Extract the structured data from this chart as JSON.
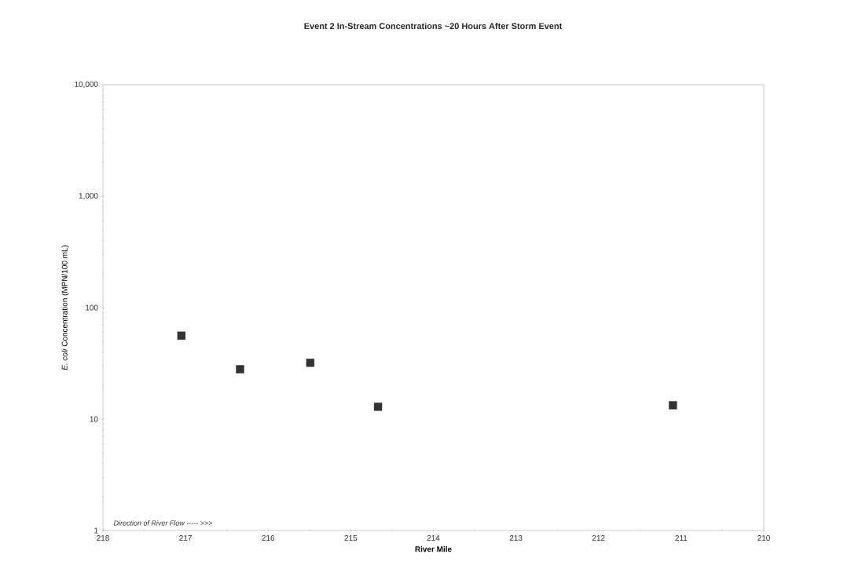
{
  "chart_data": {
    "type": "scatter",
    "title": "Event 2 In-Stream Concentrations ~20 Hours After Storm Event",
    "xlabel": "River Mile",
    "ylabel": "*E. coli* Concentration (MPN/100 mL)",
    "x": [
      217.05,
      216.34,
      215.49,
      214.67,
      211.1
    ],
    "values": [
      56,
      28,
      32,
      12.9,
      13.3
    ],
    "color": "#333333",
    "marker": "square",
    "log": "y",
    "grid": false,
    "xlim": [
      218,
      210
    ],
    "xticks": [
      218,
      217,
      216,
      215,
      214,
      213,
      212,
      211,
      210
    ],
    "ylim": [
      1,
      10000
    ],
    "yticks": [
      1,
      10,
      100,
      {
        "value": 1000,
        "label": "1,000"
      },
      {
        "value": 10000,
        "label": "10,000"
      }
    ],
    "annotations": [
      "Direction of River Flow ----- >>>"
    ]
  }
}
